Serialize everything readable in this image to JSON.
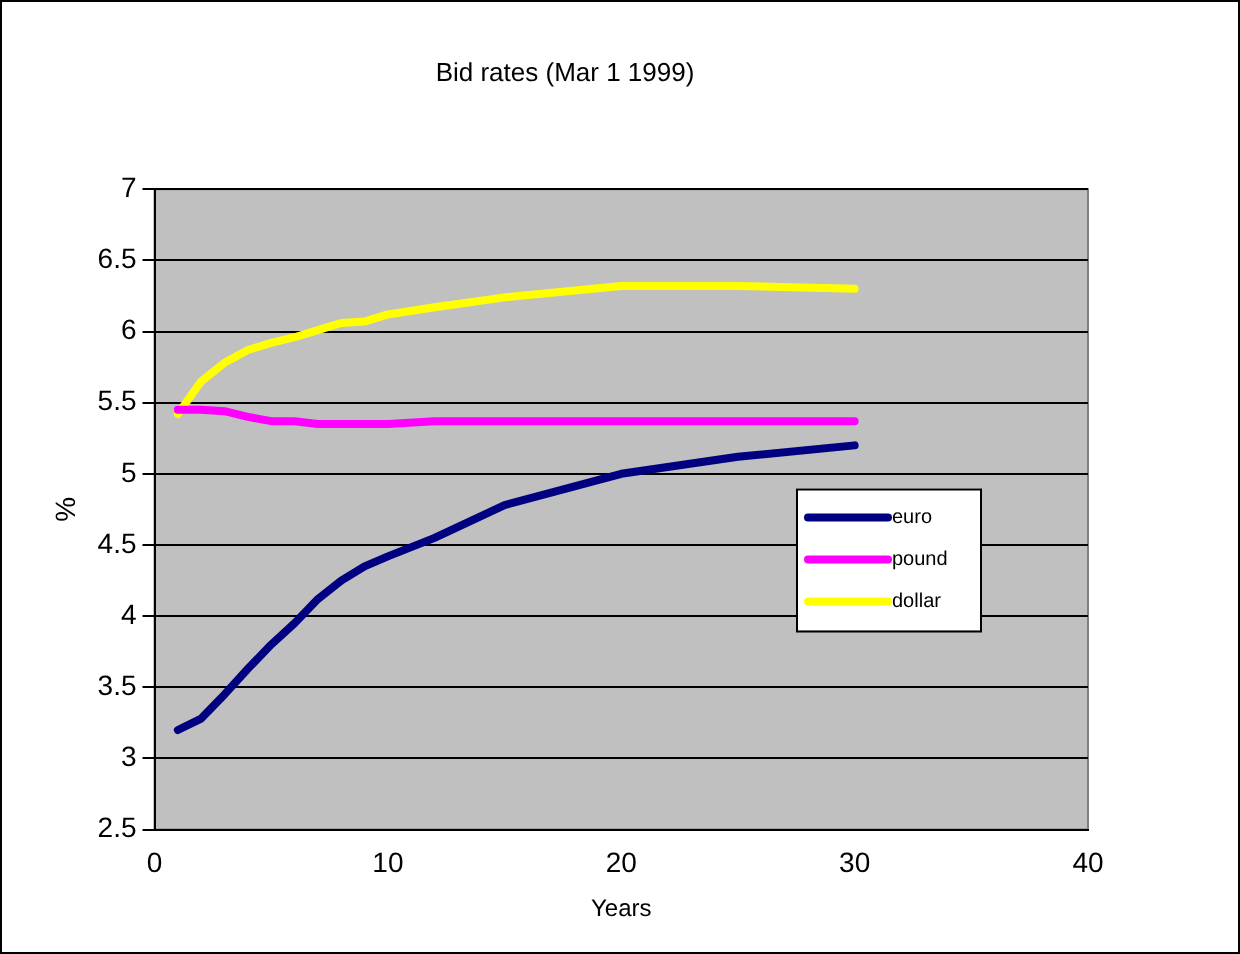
{
  "chart_data": {
    "type": "line",
    "title": "Bid rates (Mar 1 1999)",
    "xlabel": "Years",
    "ylabel": "%",
    "x": [
      1,
      2,
      3,
      4,
      5,
      6,
      7,
      8,
      9,
      10,
      12,
      15,
      20,
      25,
      30
    ],
    "series": [
      {
        "name": "euro",
        "color": "#000080",
        "values": [
          3.2,
          3.28,
          3.45,
          3.63,
          3.8,
          3.95,
          4.12,
          4.25,
          4.35,
          4.42,
          4.55,
          4.78,
          5.0,
          5.12,
          5.2
        ]
      },
      {
        "name": "pound",
        "color": "#ff00ff",
        "values": [
          5.45,
          5.45,
          5.44,
          5.4,
          5.37,
          5.37,
          5.35,
          5.35,
          5.35,
          5.35,
          5.37,
          5.37,
          5.37,
          5.37,
          5.37
        ]
      },
      {
        "name": "dollar",
        "color": "#ffff00",
        "values": [
          5.42,
          5.65,
          5.78,
          5.87,
          5.92,
          5.96,
          6.01,
          6.06,
          6.07,
          6.12,
          6.17,
          6.24,
          6.32,
          6.32,
          6.3
        ]
      }
    ],
    "xlim": [
      0,
      40
    ],
    "xticks": [
      0,
      10,
      20,
      30,
      40
    ],
    "ylim": [
      2.5,
      7
    ],
    "yticks": [
      2.5,
      3,
      3.5,
      4,
      4.5,
      5,
      5.5,
      6,
      6.5,
      7
    ],
    "grid": "y",
    "legend": "right",
    "marker": "none",
    "line_style": "solid"
  }
}
